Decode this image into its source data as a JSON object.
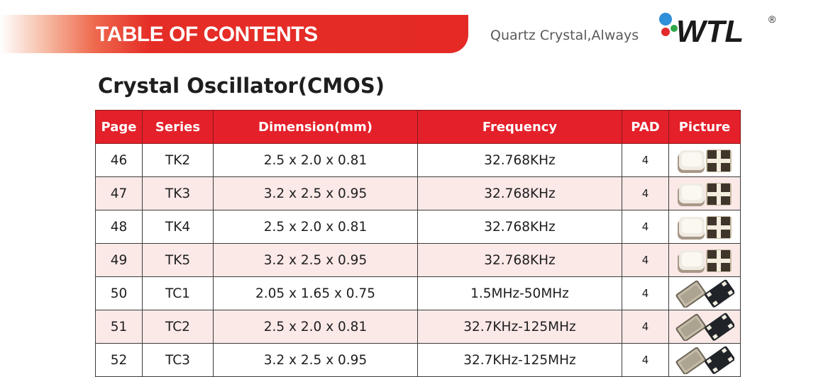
{
  "header": {
    "banner_title": "TABLE OF CONTENTS",
    "tagline": "Quartz Crystal,Always",
    "logo_text": "WTL",
    "registered_mark": "®"
  },
  "section": {
    "title": "Crystal Oscillator(CMOS)"
  },
  "table": {
    "columns": [
      "Page",
      "Series",
      "Dimension(mm)",
      "Frequency",
      "PAD",
      "Picture"
    ],
    "rows": [
      {
        "page": "46",
        "series": "TK2",
        "dimension": "2.5 x 2.0 x 0.81",
        "frequency": "32.768KHz",
        "pad": "4",
        "picture": "tk-package-icon"
      },
      {
        "page": "47",
        "series": "TK3",
        "dimension": "3.2 x 2.5 x 0.95",
        "frequency": "32.768KHz",
        "pad": "4",
        "picture": "tk-package-icon"
      },
      {
        "page": "48",
        "series": "TK4",
        "dimension": "2.5 x 2.0 x 0.81",
        "frequency": "32.768KHz",
        "pad": "4",
        "picture": "tk-package-icon"
      },
      {
        "page": "49",
        "series": "TK5",
        "dimension": "3.2 x 2.5 x 0.95",
        "frequency": "32.768KHz",
        "pad": "4",
        "picture": "tk-package-icon"
      },
      {
        "page": "50",
        "series": "TC1",
        "dimension": "2.05 x 1.65 x 0.75",
        "frequency": "1.5MHz-50MHz",
        "pad": "4",
        "picture": "tc-package-icon"
      },
      {
        "page": "51",
        "series": "TC2",
        "dimension": "2.5 x 2.0 x 0.81",
        "frequency": "32.7KHz-125MHz",
        "pad": "4",
        "picture": "tc-package-icon"
      },
      {
        "page": "52",
        "series": "TC3",
        "dimension": "3.2 x 2.5 x 0.95",
        "frequency": "32.7KHz-125MHz",
        "pad": "4",
        "picture": "tc-package-icon"
      }
    ]
  },
  "colors": {
    "accent_red": "#e4202a",
    "logo_blue": "#2f8fd8",
    "logo_green": "#2ea84a",
    "logo_red": "#e32b2b",
    "logo_text": "#1a1a1a",
    "row_alt": "#fbe9e8"
  }
}
